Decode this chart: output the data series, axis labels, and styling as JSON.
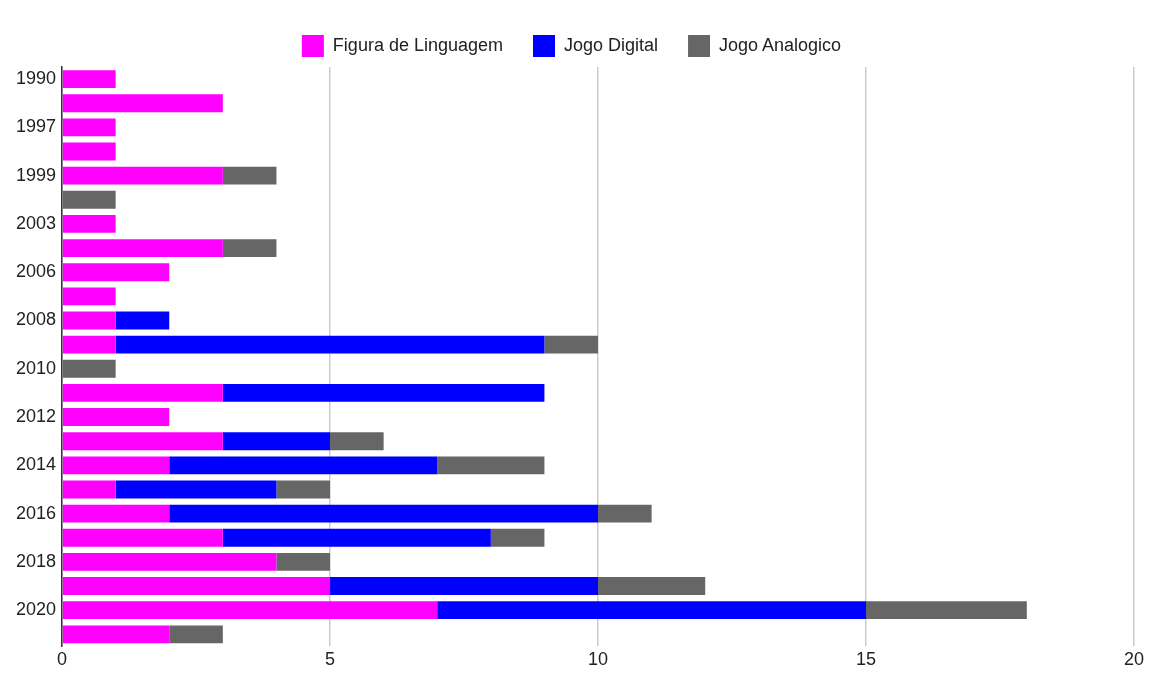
{
  "chart_data": {
    "type": "bar",
    "orientation": "horizontal",
    "stacked": true,
    "categories": [
      "1990",
      null,
      "1997",
      null,
      "1999",
      null,
      "2003",
      null,
      "2006",
      null,
      "2008",
      null,
      "2010",
      null,
      "2012",
      null,
      "2014",
      null,
      "2016",
      null,
      "2018",
      null,
      "2020",
      null
    ],
    "series": [
      {
        "name": "Figura de Linguagem",
        "color": "#ff00ff",
        "values": [
          1,
          3,
          1,
          1,
          3,
          0,
          1,
          3,
          2,
          1,
          1,
          1,
          0,
          3,
          2,
          3,
          2,
          1,
          2,
          3,
          4,
          5,
          7,
          2
        ]
      },
      {
        "name": "Jogo Digital",
        "color": "#0000ff",
        "values": [
          0,
          0,
          0,
          0,
          0,
          0,
          0,
          0,
          0,
          0,
          1,
          8,
          0,
          6,
          0,
          2,
          5,
          3,
          8,
          5,
          0,
          5,
          8,
          0
        ]
      },
      {
        "name": "Jogo Analogico",
        "color": "#666666",
        "values": [
          0,
          0,
          0,
          0,
          1,
          1,
          0,
          1,
          0,
          0,
          0,
          1,
          1,
          0,
          0,
          1,
          2,
          1,
          1,
          1,
          1,
          2,
          3,
          1
        ]
      }
    ],
    "xlim": [
      0,
      20
    ],
    "xticks": [
      0,
      5,
      10,
      15,
      20
    ],
    "grid": "x",
    "legend": "top"
  }
}
